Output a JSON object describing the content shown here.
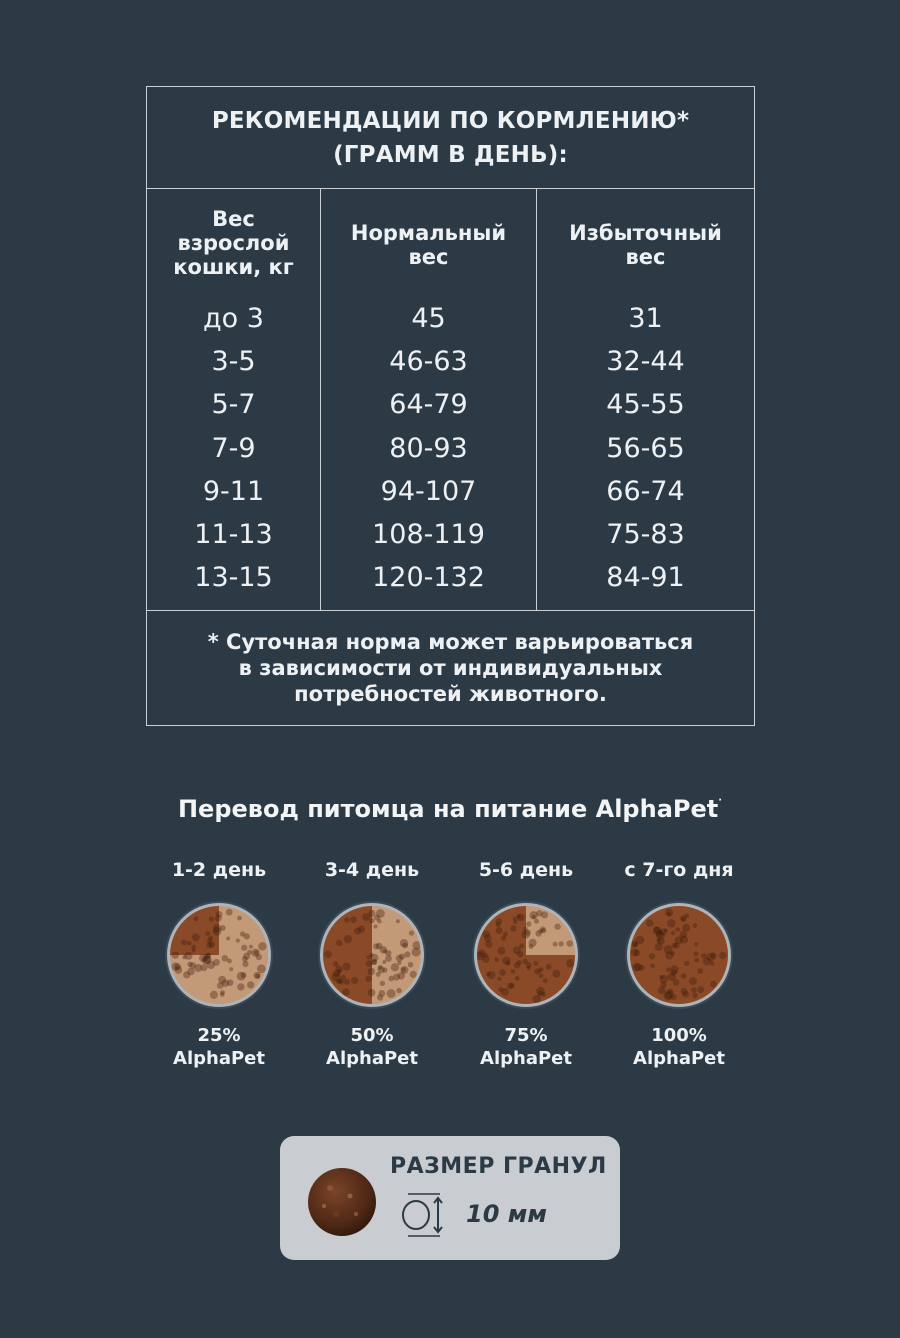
{
  "feeding": {
    "title_line1": "РЕКОМЕНДАЦИИ ПО КОРМЛЕНИЮ*",
    "title_line2": "(ГРАММ В ДЕНЬ):",
    "columns": {
      "weight": [
        "Вес",
        "взрослой",
        "кошки, кг"
      ],
      "normal": [
        "Нормальный",
        "вес"
      ],
      "excess": [
        "Избыточный",
        "вес"
      ]
    },
    "rows": [
      {
        "weight": "до 3",
        "normal": "45",
        "excess": "31"
      },
      {
        "weight": "3-5",
        "normal": "46-63",
        "excess": "32-44"
      },
      {
        "weight": "5-7",
        "normal": "64-79",
        "excess": "45-55"
      },
      {
        "weight": "7-9",
        "normal": "80-93",
        "excess": "56-65"
      },
      {
        "weight": "9-11",
        "normal": "94-107",
        "excess": "66-74"
      },
      {
        "weight": "11-13",
        "normal": "108-119",
        "excess": "75-83"
      },
      {
        "weight": "13-15",
        "normal": "120-132",
        "excess": "84-91"
      }
    ],
    "footnote": [
      "* Суточная норма может варьироваться",
      "в зависимости от индивидуальных",
      "потребностей животного."
    ]
  },
  "transition": {
    "title": "Перевод питомца на питание",
    "brand": "AlphaPet",
    "brand_mark": "·",
    "stages": [
      {
        "day": "1-2 день",
        "percent": "25%",
        "brand": "AlphaPet",
        "fraction": 0.25
      },
      {
        "day": "3-4 день",
        "percent": "50%",
        "brand": "AlphaPet",
        "fraction": 0.5
      },
      {
        "day": "5-6 день",
        "percent": "75%",
        "brand": "AlphaPet",
        "fraction": 0.75
      },
      {
        "day": "с 7-го дня",
        "percent": "100%",
        "brand": "AlphaPet",
        "fraction": 1.0
      }
    ]
  },
  "granule": {
    "label": "РАЗМЕР ГРАНУЛ",
    "size": "10 мм"
  },
  "colors": {
    "background": "#2c3a46",
    "line": "#c9d0d6",
    "kibble_dark": "#8a4a28",
    "kibble_light": "#c39a78",
    "granule_box": "#c9ccd0"
  }
}
